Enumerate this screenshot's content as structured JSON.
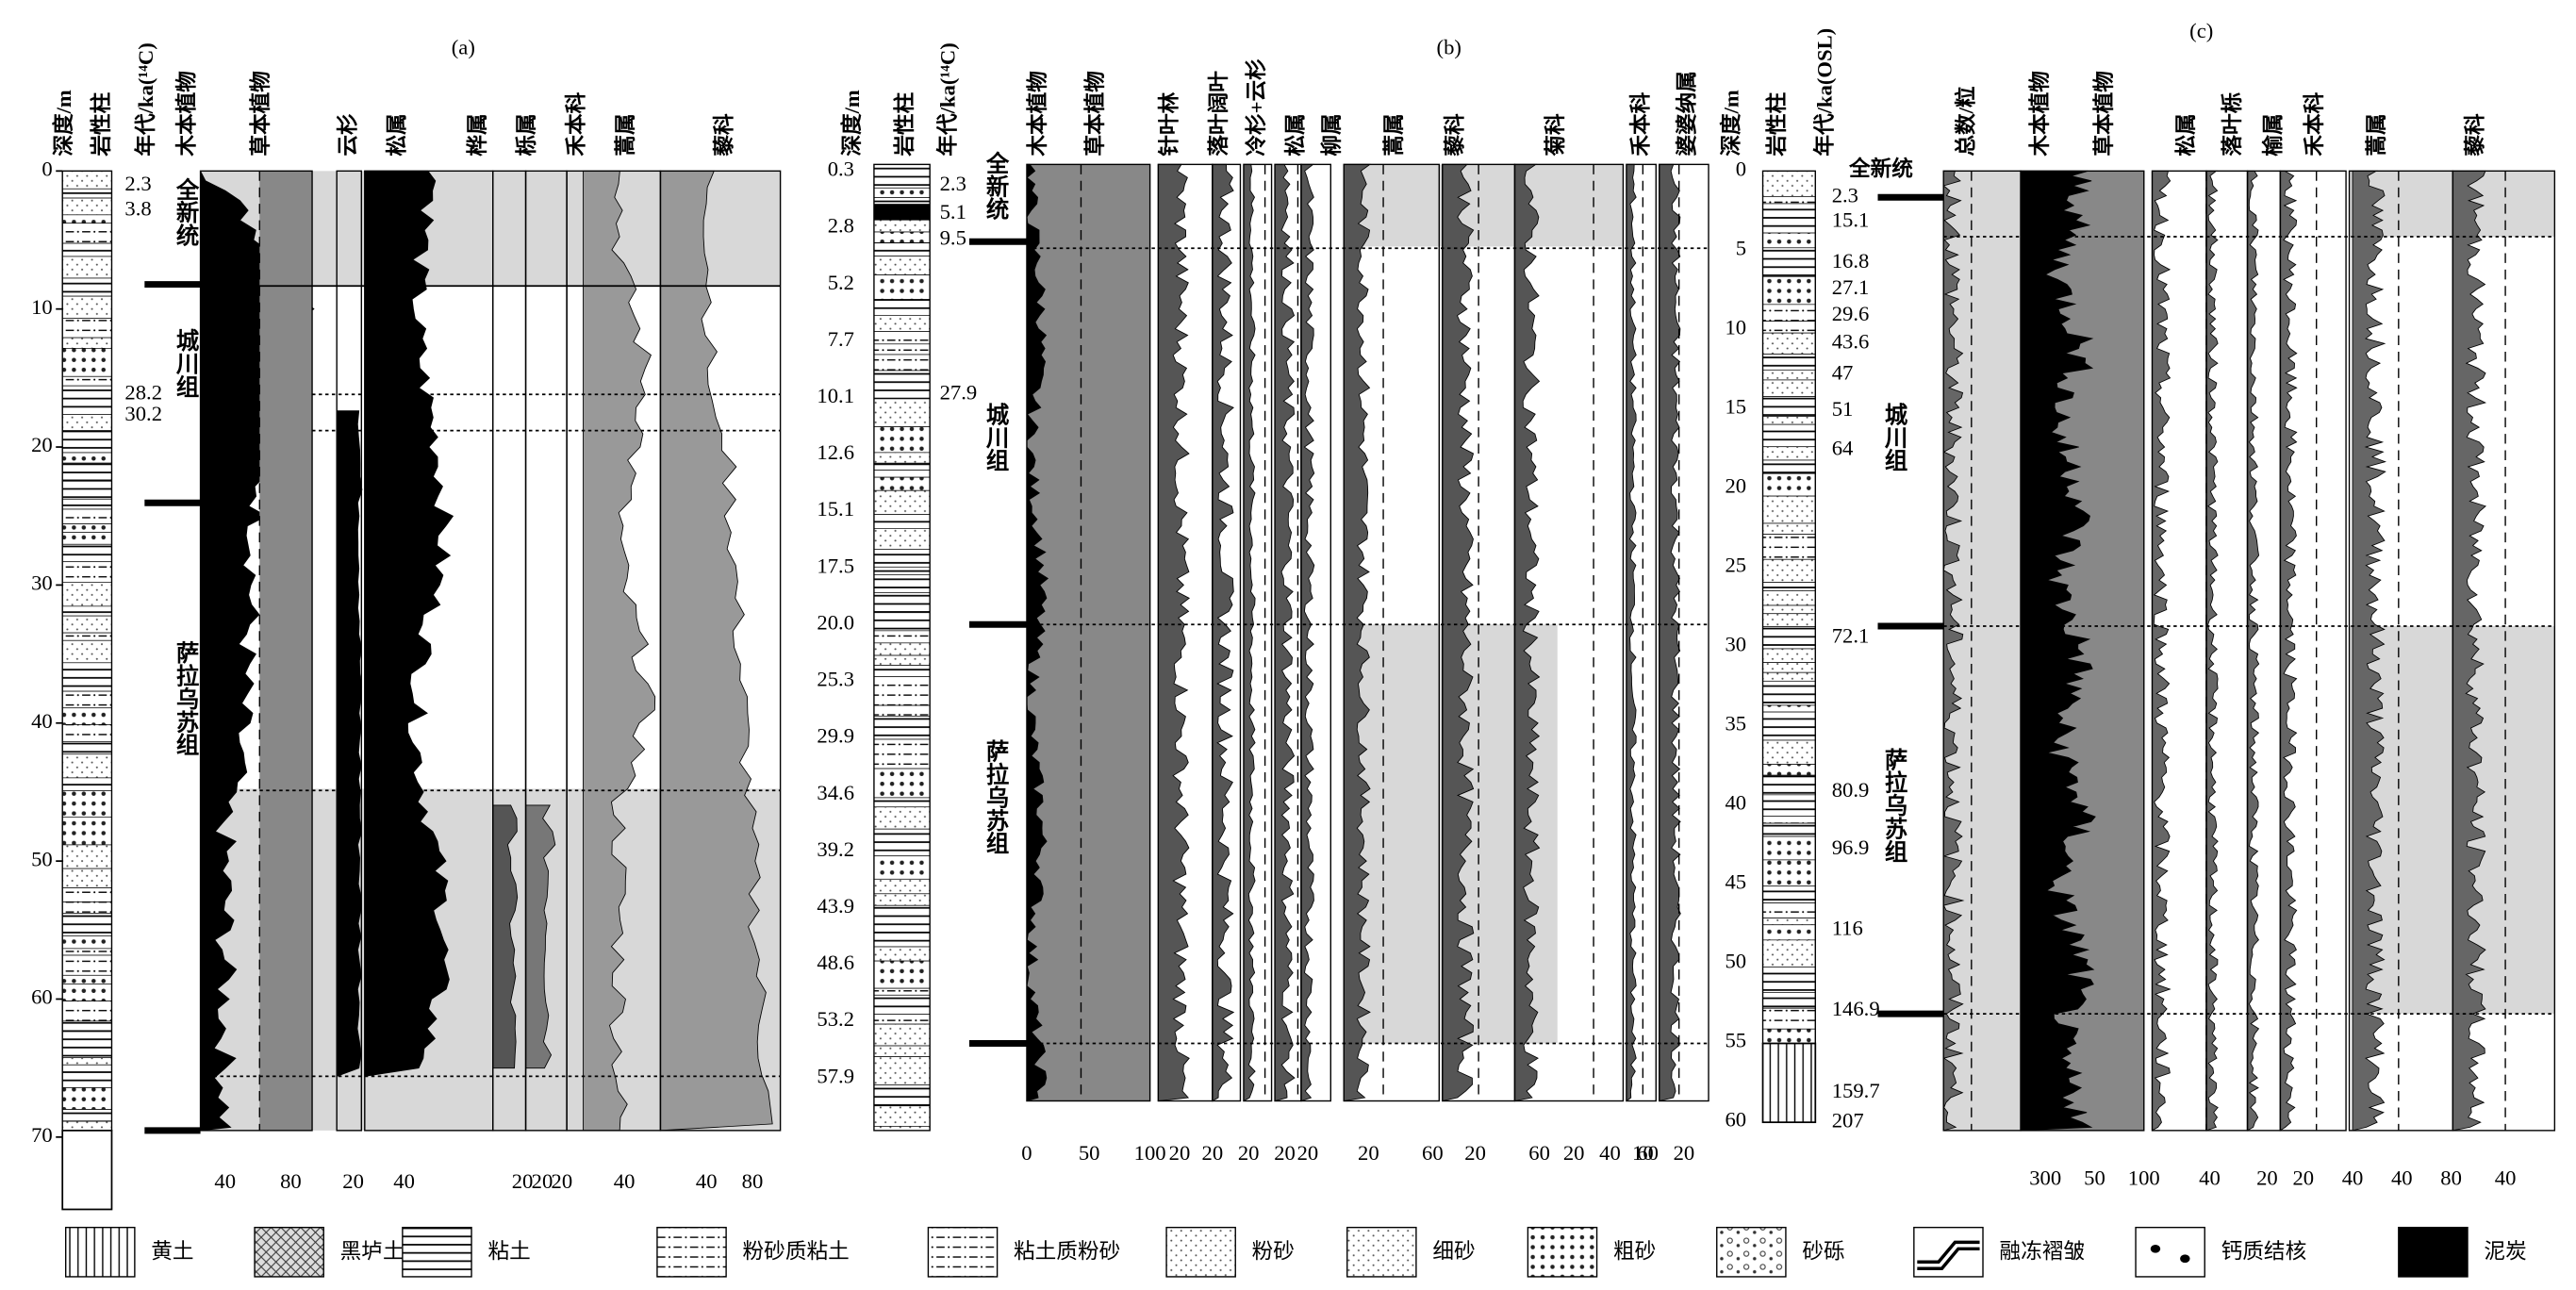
{
  "panel_a": {
    "label": "(a)",
    "headers": [
      "深度/m",
      "岩性柱",
      "年代/ka(¹⁴C)",
      "木本植物",
      "草本植物",
      "云杉",
      "松属",
      "桦属",
      "栎属",
      "禾本科",
      "蒿属",
      "藜科"
    ],
    "depths": [
      "0",
      "10",
      "20",
      "30",
      "40",
      "50",
      "60",
      "70"
    ],
    "ages": [
      "2.3",
      "3.8",
      "28.2",
      "30.2"
    ],
    "formations": [
      "全新统",
      "城川组",
      "萨拉乌苏组"
    ],
    "x_ticks": [
      "40",
      "80",
      "20",
      "40",
      "20",
      "20",
      "20",
      "40",
      "40",
      "80"
    ]
  },
  "panel_b": {
    "label": "(b)",
    "headers": [
      "深度/m",
      "岩性柱",
      "年代/ka(¹⁴C)",
      "木本植物",
      "草本植物",
      "针叶林",
      "落叶阔叶",
      "冷杉+云杉",
      "松属",
      "柳属",
      "蒿属",
      "藜科",
      "菊科",
      "禾本科",
      "婆婆纳属"
    ],
    "depths": [
      "0.3",
      "2.8",
      "5.2",
      "7.7",
      "10.1",
      "12.6",
      "15.1",
      "17.5",
      "20.0",
      "25.3",
      "29.9",
      "34.6",
      "39.2",
      "43.9",
      "48.6",
      "53.2",
      "57.9"
    ],
    "ages": [
      "2.3",
      "5.1",
      "9.5",
      "27.9"
    ],
    "formations": [
      "全新统",
      "城川组",
      "萨拉乌苏组"
    ],
    "x_ticks": [
      "0",
      "50",
      "100",
      "20",
      "20",
      "20",
      "20",
      "20",
      "20",
      "60",
      "20",
      "60",
      "20",
      "40",
      "60",
      "10",
      "20"
    ]
  },
  "panel_c": {
    "label": "(c)",
    "headers": [
      "深度/m",
      "岩性柱",
      "年代/ka(OSL)",
      "总数/粒",
      "木本植物",
      "草本植物",
      "松属",
      "落叶栎",
      "榆属",
      "禾本科",
      "蒿属",
      "藜科"
    ],
    "depths": [
      "0",
      "5",
      "10",
      "15",
      "20",
      "25",
      "30",
      "35",
      "40",
      "45",
      "50",
      "55",
      "60"
    ],
    "ages": [
      "2.3",
      "15.1",
      "16.8",
      "27.1",
      "29.6",
      "43.6",
      "47",
      "51",
      "64",
      "72.1",
      "80.9",
      "96.9",
      "116",
      "146.9",
      "159.7",
      "207"
    ],
    "formations": [
      "全新统",
      "城川组",
      "萨拉乌苏组"
    ],
    "x_ticks": [
      "300",
      "50",
      "100",
      "40",
      "20",
      "20",
      "40",
      "40",
      "80",
      "40"
    ]
  },
  "legend": [
    "黄土",
    "黑垆土",
    "粘土",
    "粉砂质粘土",
    "粘土质粉砂",
    "粉砂",
    "细砂",
    "粗砂",
    "砂砾",
    "融冻褶皱",
    "钙质结核",
    "泥炭"
  ]
}
